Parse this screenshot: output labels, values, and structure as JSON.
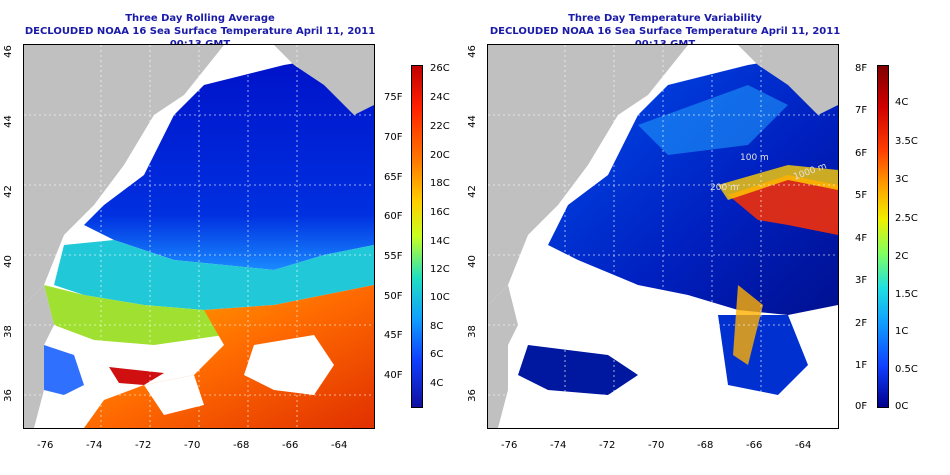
{
  "left_panel": {
    "title_line1": "Three Day Rolling Average",
    "title_line2": "DECLOUDED NOAA 16 Sea Surface Temperature April 11, 2011 00:13 GMT",
    "colorbar_celsius": [
      "26C",
      "24C",
      "22C",
      "20C",
      "18C",
      "16C",
      "14C",
      "12C",
      "10C",
      "8C",
      "6C",
      "4C"
    ],
    "colorbar_fahrenheit": [
      "75F",
      "70F",
      "65F",
      "60F",
      "55F",
      "50F",
      "45F",
      "40F"
    ]
  },
  "right_panel": {
    "title_line1": "Three Day Temperature Variability",
    "title_line2": "DECLOUDED NOAA 16 Sea Surface Temperature April 11, 2011 00:13 GMT",
    "colorbar_celsius": [
      "4C",
      "3.5C",
      "3C",
      "2.5C",
      "2C",
      "1.5C",
      "1C",
      "0.5C",
      "0C"
    ],
    "colorbar_fahrenheit": [
      "8F",
      "7F",
      "6F",
      "5F",
      "4F",
      "3F",
      "2F",
      "1F",
      "0F"
    ],
    "contour_labels": [
      "1000 m",
      "200 m",
      "100 m"
    ]
  },
  "longitude_ticks": [
    "-76",
    "-74",
    "-72",
    "-70",
    "-68",
    "-66",
    "-64"
  ],
  "latitude_ticks": [
    "46",
    "44",
    "42",
    "40",
    "38",
    "36"
  ],
  "colors": {
    "title": "#1a1aa8",
    "land": "#c0c0c0",
    "cloud": "#ffffff"
  }
}
